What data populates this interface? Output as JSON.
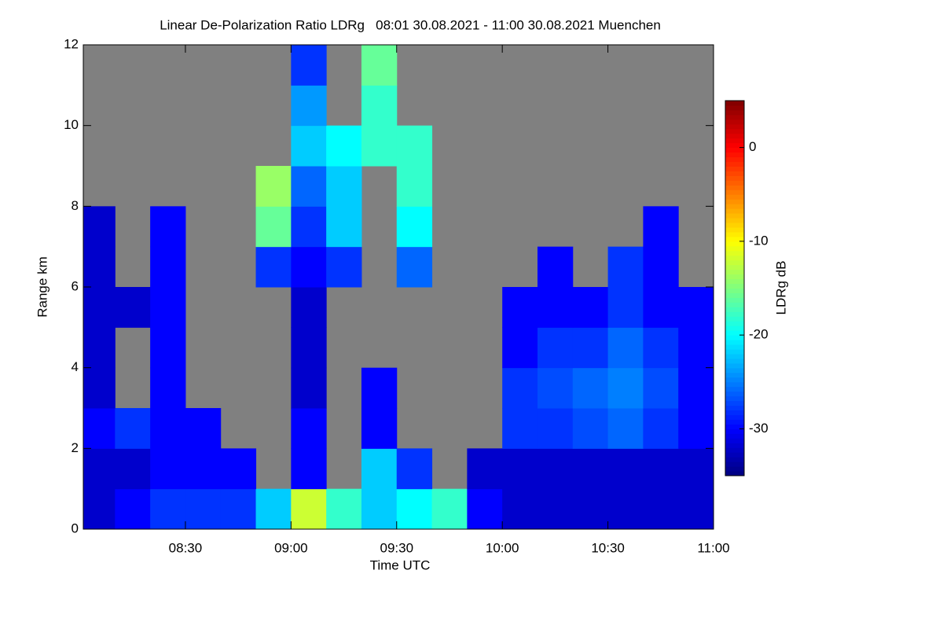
{
  "chart_data": {
    "type": "heatmap",
    "title": "Linear De-Polarization Ratio LDRg   08:01 30.08.2021 - 11:00 30.08.2021 Muenchen",
    "xlabel": "Time UTC",
    "ylabel": "Range km",
    "colorbar_label": "LDRg dB",
    "xlim": [
      1,
      180
    ],
    "xticks": [
      {
        "value": 30,
        "label": "08:30"
      },
      {
        "value": 60,
        "label": "09:00"
      },
      {
        "value": 90,
        "label": "09:30"
      },
      {
        "value": 120,
        "label": "10:00"
      },
      {
        "value": 150,
        "label": "10:30"
      },
      {
        "value": 180,
        "label": "11:00"
      }
    ],
    "ylim": [
      0,
      12
    ],
    "yticks": [
      0,
      2,
      4,
      6,
      8,
      10,
      12
    ],
    "clim": [
      -35,
      5
    ],
    "cticks": [
      0,
      -10,
      -20,
      -30
    ],
    "colormap": [
      "#00007f",
      "#0000ff",
      "#007fff",
      "#00ffff",
      "#7fff7f",
      "#ffff00",
      "#ff7f00",
      "#ff0000",
      "#7f0000"
    ],
    "missing_color": "#808080",
    "x_edges": [
      1,
      10,
      20,
      30,
      40,
      50,
      60,
      70,
      80,
      90,
      100,
      110,
      120,
      130,
      140,
      150,
      160,
      170,
      180
    ],
    "y_edges": [
      0,
      1,
      2,
      3,
      4,
      5,
      6,
      7,
      8,
      9,
      10,
      11,
      12
    ],
    "z": [
      [
        -32,
        -30,
        -28,
        -28,
        -28,
        -22,
        -12,
        -18,
        -22,
        -20,
        -18,
        -30,
        -32,
        -32,
        -32,
        -32,
        -32,
        -32
      ],
      [
        -32,
        -32,
        -30,
        -30,
        -30,
        null,
        -30,
        null,
        -22,
        -28,
        null,
        -32,
        -32,
        -32,
        -32,
        -32,
        -32,
        -32
      ],
      [
        -30,
        -28,
        -30,
        -30,
        null,
        null,
        -30,
        null,
        -30,
        null,
        null,
        null,
        -28,
        -28,
        -27,
        -26,
        -28,
        -30
      ],
      [
        -32,
        null,
        -30,
        null,
        null,
        null,
        -32,
        null,
        -30,
        null,
        null,
        null,
        -28,
        -27,
        -26,
        -25,
        -27,
        -30
      ],
      [
        -32,
        null,
        -30,
        null,
        null,
        null,
        -32,
        null,
        null,
        null,
        null,
        null,
        -30,
        -28,
        -28,
        -26,
        -28,
        -30
      ],
      [
        -32,
        -32,
        -30,
        null,
        null,
        null,
        -32,
        null,
        null,
        null,
        null,
        null,
        -30,
        -30,
        -30,
        -28,
        -30,
        -30
      ],
      [
        -32,
        null,
        -30,
        null,
        null,
        -28,
        -30,
        -28,
        null,
        -26,
        null,
        null,
        null,
        -30,
        null,
        -28,
        -30,
        null
      ],
      [
        -32,
        null,
        -30,
        null,
        null,
        -16,
        -28,
        -22,
        null,
        -20,
        null,
        null,
        null,
        null,
        null,
        null,
        -30,
        null
      ],
      [
        null,
        null,
        null,
        null,
        null,
        -14,
        -26,
        -22,
        null,
        -18,
        null,
        null,
        null,
        null,
        null,
        null,
        null,
        null
      ],
      [
        null,
        null,
        null,
        null,
        null,
        null,
        -22,
        -20,
        -18,
        -18,
        null,
        null,
        null,
        null,
        null,
        null,
        null,
        null
      ],
      [
        null,
        null,
        null,
        null,
        null,
        null,
        -24,
        null,
        -18,
        null,
        null,
        null,
        null,
        null,
        null,
        null,
        null,
        null
      ],
      [
        null,
        null,
        null,
        null,
        null,
        null,
        -28,
        null,
        -16,
        null,
        null,
        null,
        null,
        null,
        null,
        null,
        null,
        null
      ]
    ]
  }
}
